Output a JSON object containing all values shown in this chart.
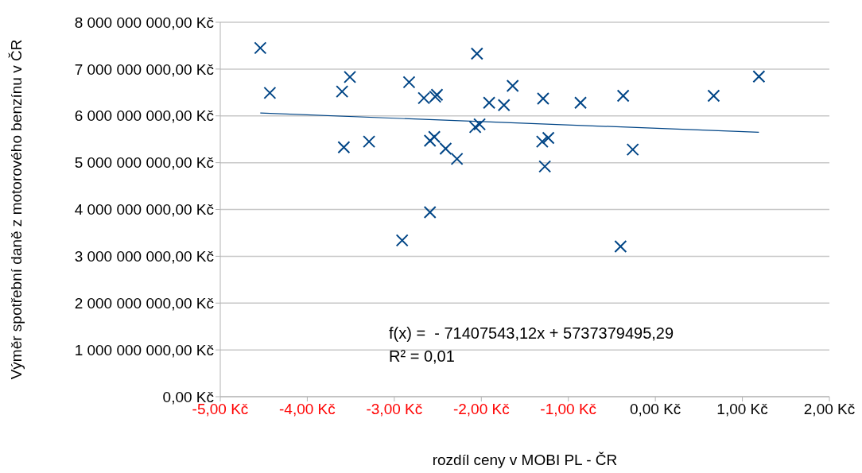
{
  "chart_data": {
    "type": "scatter",
    "xlabel": "rozdíl ceny v MOBI PL - ČR",
    "ylabel": "Výměr spotřební daně z motorového benzínu v ČR",
    "xlim": [
      -5,
      2
    ],
    "ylim": [
      0,
      8000000000
    ],
    "xticks": [
      {
        "value": -5,
        "label": "-5,00 Kč"
      },
      {
        "value": -4,
        "label": "-4,00 Kč"
      },
      {
        "value": -3,
        "label": "-3,00 Kč"
      },
      {
        "value": -2,
        "label": "-2,00 Kč"
      },
      {
        "value": -1,
        "label": "-1,00 Kč"
      },
      {
        "value": 0,
        "label": "0,00 Kč"
      },
      {
        "value": 1,
        "label": "1,00 Kč"
      },
      {
        "value": 2,
        "label": "2,00 Kč"
      }
    ],
    "yticks": [
      {
        "value": 0,
        "label": "0,00 Kč"
      },
      {
        "value": 1000000000,
        "label": "1 000 000 000,00 Kč"
      },
      {
        "value": 2000000000,
        "label": "2 000 000 000,00 Kč"
      },
      {
        "value": 3000000000,
        "label": "3 000 000 000,00 Kč"
      },
      {
        "value": 4000000000,
        "label": "4 000 000 000,00 Kč"
      },
      {
        "value": 5000000000,
        "label": "5 000 000 000,00 Kč"
      },
      {
        "value": 6000000000,
        "label": "6 000 000 000,00 Kč"
      },
      {
        "value": 7000000000,
        "label": "7 000 000 000,00 Kč"
      },
      {
        "value": 8000000000,
        "label": "8 000 000 000,00 Kč"
      }
    ],
    "grid": "y",
    "series": [
      {
        "marker": "cross",
        "color": "#004586",
        "x": [
          -4.54,
          -4.43,
          -3.6,
          -3.51,
          -3.58,
          -3.29,
          -2.83,
          -2.66,
          -2.51,
          -2.53,
          -2.91,
          -2.59,
          -2.59,
          -2.54,
          -2.41,
          -2.28,
          -2.05,
          -2.07,
          -2.02,
          -1.91,
          -1.74,
          -1.64,
          -1.29,
          -1.3,
          -1.23,
          -1.27,
          -0.86,
          -0.37,
          -0.26,
          -0.4,
          0.67,
          1.19
        ],
        "values": [
          7450000000,
          6490000000,
          6520000000,
          6830000000,
          5330000000,
          5450000000,
          6720000000,
          6380000000,
          6450000000,
          6410000000,
          3340000000,
          3940000000,
          5470000000,
          5550000000,
          5300000000,
          5080000000,
          7330000000,
          5760000000,
          5820000000,
          6280000000,
          6230000000,
          6640000000,
          6370000000,
          5450000000,
          5530000000,
          4920000000,
          6280000000,
          6430000000,
          5280000000,
          3210000000,
          6430000000,
          6840000000
        ]
      },
      {
        "type": "line",
        "marker": "none",
        "color": "#004586",
        "x": [
          -4.54,
          1.19
        ],
        "values": [
          6060000000,
          5650000000
        ]
      }
    ],
    "annotations": [
      "f(x) =  - 71407543,12x + 5737379495,29",
      "R² = 0,01"
    ]
  }
}
